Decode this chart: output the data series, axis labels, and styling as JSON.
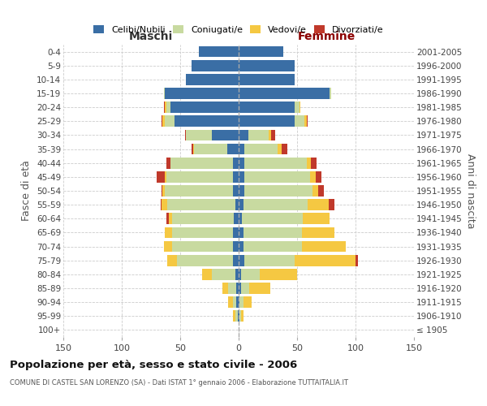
{
  "age_groups": [
    "100+",
    "95-99",
    "90-94",
    "85-89",
    "80-84",
    "75-79",
    "70-74",
    "65-69",
    "60-64",
    "55-59",
    "50-54",
    "45-49",
    "40-44",
    "35-39",
    "30-34",
    "25-29",
    "20-24",
    "15-19",
    "10-14",
    "5-9",
    "0-4"
  ],
  "birth_years": [
    "≤ 1905",
    "1906-1910",
    "1911-1915",
    "1916-1920",
    "1921-1925",
    "1926-1930",
    "1931-1935",
    "1936-1940",
    "1941-1945",
    "1946-1950",
    "1951-1955",
    "1956-1960",
    "1961-1965",
    "1966-1970",
    "1971-1975",
    "1976-1980",
    "1981-1985",
    "1986-1990",
    "1991-1995",
    "1996-2000",
    "2001-2005"
  ],
  "m_celibi": [
    0,
    1,
    2,
    2,
    3,
    5,
    5,
    5,
    4,
    3,
    5,
    5,
    5,
    10,
    23,
    55,
    58,
    63,
    45,
    40,
    34
  ],
  "m_coniugati": [
    0,
    2,
    3,
    7,
    20,
    48,
    52,
    52,
    53,
    58,
    58,
    57,
    53,
    28,
    22,
    8,
    4,
    1,
    0,
    0,
    0
  ],
  "m_vedovi": [
    0,
    2,
    4,
    5,
    8,
    8,
    7,
    6,
    3,
    5,
    2,
    1,
    0,
    1,
    0,
    2,
    1,
    0,
    0,
    0,
    0
  ],
  "m_divorziati": [
    0,
    0,
    0,
    0,
    0,
    0,
    0,
    0,
    2,
    1,
    1,
    7,
    4,
    1,
    1,
    1,
    1,
    0,
    0,
    0,
    0
  ],
  "f_nubili": [
    0,
    1,
    1,
    2,
    2,
    5,
    4,
    4,
    3,
    4,
    5,
    5,
    5,
    5,
    8,
    48,
    48,
    78,
    48,
    48,
    38
  ],
  "f_coniugate": [
    0,
    1,
    3,
    7,
    16,
    43,
    50,
    50,
    52,
    55,
    58,
    56,
    53,
    28,
    18,
    8,
    4,
    1,
    0,
    0,
    0
  ],
  "f_vedove": [
    0,
    2,
    7,
    18,
    32,
    52,
    38,
    28,
    23,
    18,
    5,
    5,
    4,
    4,
    2,
    2,
    1,
    0,
    0,
    0,
    0
  ],
  "f_divorziate": [
    0,
    0,
    0,
    0,
    0,
    2,
    0,
    0,
    0,
    5,
    5,
    5,
    5,
    5,
    3,
    1,
    0,
    0,
    0,
    0,
    0
  ],
  "colors": {
    "celibi": "#3a6ea5",
    "coniugati": "#c8daa0",
    "vedovi": "#f5c842",
    "divorziati": "#c0392b"
  },
  "xlim": 150,
  "title": "Popolazione per età, sesso e stato civile - 2006",
  "subtitle": "COMUNE DI CASTEL SAN LORENZO (SA) - Dati ISTAT 1° gennaio 2006 - Elaborazione TUTTAITALIA.IT",
  "ylabel_left": "Fasce di età",
  "ylabel_right": "Anni di nascita",
  "xlabel_left": "Maschi",
  "xlabel_right": "Femmine",
  "bg_color": "#f5f5f5"
}
